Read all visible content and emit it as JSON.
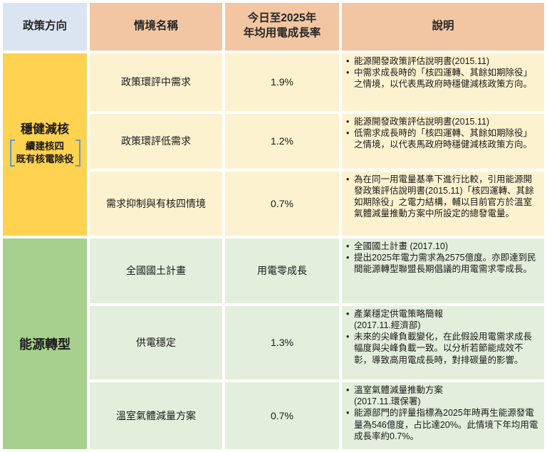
{
  "colors": {
    "header_first_bg": "#DBE5F1",
    "header_bg": "#F2C6A2",
    "group1_bg": "#FFD24F",
    "group1_row_bg": "#FDF2D0",
    "group2_bg": "#A7CF8E",
    "group2_row_bg": "#E3EFDC",
    "bracket_blue": "#5B9BD5",
    "text": "#1a1a1a"
  },
  "header": {
    "policy_direction": "政策方向",
    "scenario_name": "情境名稱",
    "growth_rate": "今日至2025年\n年均用電成長率",
    "description": "說明"
  },
  "groups": [
    {
      "name": "穩健減核",
      "bracket_lines": [
        "續建核四",
        "既有核電除役"
      ],
      "rows": [
        {
          "scenario": "政策環評中需求",
          "growth": "1.9%",
          "bullets": [
            "能源開發政策評估說明書(2015.11)",
            "中需求成長時的「核四運轉、其餘如期除役」之情境，以代表馬政府時穩健減核政策方向。"
          ]
        },
        {
          "scenario": "政策環評低需求",
          "growth": "1.2%",
          "bullets": [
            "能源開發政策評估說明書(2015.11)",
            "低需求成長時的「核四運轉、其餘如期除役」之情境，以代表馬政府時穩健減核政策方向。"
          ]
        },
        {
          "scenario": "需求抑制與有核四情境",
          "growth": "0.7%",
          "bullets": [
            "為在同一用電量基準下進行比較，引用能源開發政策評估說明書(2015.11)「核四運轉、其餘如期除役」之電力結構，輔以目前官方於溫室氣體減量推動方案中所設定的總發電量。"
          ]
        }
      ]
    },
    {
      "name": "能源轉型",
      "rows": [
        {
          "scenario": "全國國土計畫",
          "growth": "用電零成長",
          "bullets": [
            "全國國土計畫 (2017.10)",
            "提出2025年電力需求為2575億度。亦即達到民間能源轉型聯盟長期倡議的用電需求零成長。"
          ]
        },
        {
          "scenario": "供電穩定",
          "growth": "1.3%",
          "bullets": [
            "產業穩定供電策略簡報\n(2017.11.經濟部)",
            "未來的尖峰負載變化，在此假設用電需求成長幅度與尖峰負載一致。以分析若節能成效不彰，導致高用電成長時，對排碳量的影響。"
          ]
        },
        {
          "scenario": "溫室氣體減量方案",
          "growth": "0.7%",
          "bullets": [
            "溫室氣體減量推動方案\n(2017.11.環保署)",
            "能源部門的評量指標為2025年時再生能源發電量為546億度，占比達20%。此情境下年均用電成長率約0.7%。"
          ]
        }
      ]
    }
  ]
}
